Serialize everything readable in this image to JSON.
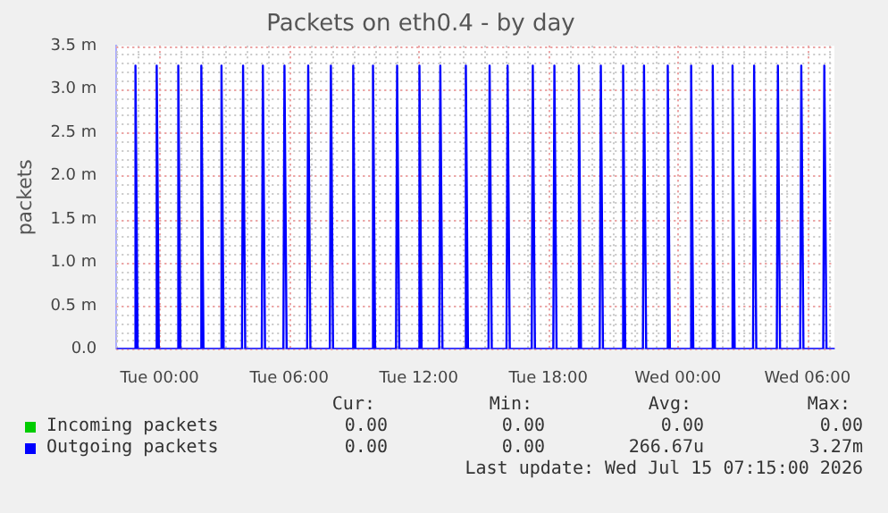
{
  "chart_data": {
    "type": "line",
    "title": "Packets on eth0.4 - by day",
    "ylabel": "packets",
    "xlim": [
      "2026-07-13T22:00",
      "2026-07-15T07:15"
    ],
    "xticks": [
      {
        "value": "2026-07-14T00:00",
        "label": "Tue 00:00"
      },
      {
        "value": "2026-07-14T06:00",
        "label": "Tue 06:00"
      },
      {
        "value": "2026-07-14T12:00",
        "label": "Tue 12:00"
      },
      {
        "value": "2026-07-14T18:00",
        "label": "Tue 18:00"
      },
      {
        "value": "2026-07-15T00:00",
        "label": "Wed 00:00"
      },
      {
        "value": "2026-07-15T06:00",
        "label": "Wed 06:00"
      }
    ],
    "ylim": [
      0,
      3.5
    ],
    "yticks": [
      {
        "value": 0,
        "label": "0.0"
      },
      {
        "value": 0.5,
        "label": "0.5 m"
      },
      {
        "value": 1,
        "label": "1.0 m"
      },
      {
        "value": 1.5,
        "label": "1.5 m"
      },
      {
        "value": 2,
        "label": "2.0 m"
      },
      {
        "value": 2.5,
        "label": "2.5 m"
      },
      {
        "value": 3,
        "label": "3.0 m"
      },
      {
        "value": 3.5,
        "label": "3.5 m"
      }
    ],
    "grid": true,
    "legend": "bottom left",
    "marker": "none",
    "series": [
      {
        "name": "Incoming packets",
        "color": "#00cc00"
      },
      {
        "name": "Outgoing packets",
        "color": "#0000ff",
        "x": [
          "2026-07-13T22:00",
          "2026-07-13T22:50",
          "2026-07-13T22:53",
          "2026-07-13T22:59",
          "2026-07-13T23:49",
          "2026-07-13T23:52",
          "2026-07-13T23:58",
          "2026-07-14T00:49",
          "2026-07-14T00:52",
          "2026-07-14T00:58",
          "2026-07-14T01:53",
          "2026-07-14T01:56",
          "2026-07-14T02:02",
          "2026-07-14T02:49",
          "2026-07-14T02:52",
          "2026-07-14T02:58",
          "2026-07-14T03:49",
          "2026-07-14T03:52",
          "2026-07-14T03:58",
          "2026-07-14T04:44",
          "2026-07-14T04:47",
          "2026-07-14T04:53",
          "2026-07-14T05:44",
          "2026-07-14T05:47",
          "2026-07-14T05:53",
          "2026-07-14T06:50",
          "2026-07-14T06:53",
          "2026-07-14T06:59",
          "2026-07-14T07:53",
          "2026-07-14T07:56",
          "2026-07-14T08:02",
          "2026-07-14T08:55",
          "2026-07-14T08:58",
          "2026-07-14T09:04",
          "2026-07-14T09:50",
          "2026-07-14T09:53",
          "2026-07-14T09:59",
          "2026-07-14T10:57",
          "2026-07-14T11:00",
          "2026-07-14T11:06",
          "2026-07-14T11:59",
          "2026-07-14T12:02",
          "2026-07-14T12:08",
          "2026-07-14T12:57",
          "2026-07-14T13:00",
          "2026-07-14T13:06",
          "2026-07-14T14:08",
          "2026-07-14T14:11",
          "2026-07-14T14:17",
          "2026-07-14T15:14",
          "2026-07-14T15:17",
          "2026-07-14T15:23",
          "2026-07-14T16:04",
          "2026-07-14T16:07",
          "2026-07-14T16:13",
          "2026-07-14T17:14",
          "2026-07-14T17:17",
          "2026-07-14T17:23",
          "2026-07-14T18:14",
          "2026-07-14T18:17",
          "2026-07-14T18:23",
          "2026-07-14T19:22",
          "2026-07-14T19:25",
          "2026-07-14T19:31",
          "2026-07-14T20:23",
          "2026-07-14T20:26",
          "2026-07-14T20:32",
          "2026-07-14T21:25",
          "2026-07-14T21:28",
          "2026-07-14T21:34",
          "2026-07-14T22:23",
          "2026-07-14T22:26",
          "2026-07-14T22:32",
          "2026-07-14T23:29",
          "2026-07-14T23:32",
          "2026-07-14T23:38",
          "2026-07-15T00:34",
          "2026-07-15T00:37",
          "2026-07-15T00:43",
          "2026-07-15T01:34",
          "2026-07-15T01:37",
          "2026-07-15T01:43",
          "2026-07-15T02:29",
          "2026-07-15T02:32",
          "2026-07-15T02:38",
          "2026-07-15T03:29",
          "2026-07-15T03:32",
          "2026-07-15T03:38",
          "2026-07-15T04:35",
          "2026-07-15T04:38",
          "2026-07-15T04:44",
          "2026-07-15T05:40",
          "2026-07-15T05:43",
          "2026-07-15T05:49",
          "2026-07-15T06:44",
          "2026-07-15T06:47",
          "2026-07-15T06:53",
          "2026-07-15T07:15"
        ],
        "values": [
          0,
          0,
          3.27,
          0,
          0,
          3.27,
          0,
          0,
          3.27,
          0,
          0,
          3.27,
          0,
          0,
          3.27,
          0,
          0,
          3.27,
          0,
          0,
          3.27,
          0,
          0,
          3.27,
          0,
          0,
          3.27,
          0,
          0,
          3.27,
          0,
          0,
          3.27,
          0,
          0,
          3.27,
          0,
          0,
          3.27,
          0,
          0,
          3.27,
          0,
          0,
          3.27,
          0,
          0,
          3.27,
          0,
          0,
          3.27,
          0,
          0,
          3.27,
          0,
          0,
          3.27,
          0,
          0,
          3.27,
          0,
          0,
          3.27,
          0,
          0,
          3.27,
          0,
          0,
          3.27,
          0,
          0,
          3.27,
          0,
          0,
          3.27,
          0,
          0,
          3.27,
          0,
          0,
          3.27,
          0,
          0,
          3.27,
          0,
          0,
          3.27,
          0,
          0,
          3.27,
          0,
          0,
          3.27,
          0,
          0,
          3.27,
          0,
          0
        ]
      }
    ],
    "annotations": [
      "Cur:",
      "Min:",
      "Avg:",
      "Max:",
      "0.00",
      "0.00",
      "0.00",
      "0.00",
      "0.00",
      "0.00",
      "266.67u",
      "3.27m",
      "Last update: Wed Jul 15 07:15:00 2026"
    ]
  }
}
